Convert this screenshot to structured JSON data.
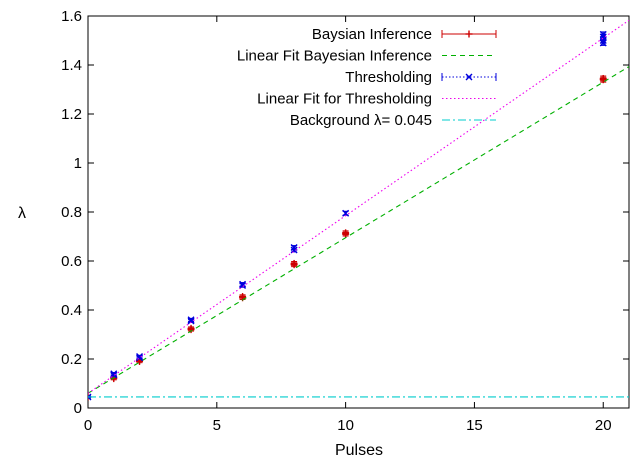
{
  "chart_data": {
    "type": "scatter",
    "xlabel": "Pulses",
    "ylabel": "λ",
    "xlim": [
      0,
      21
    ],
    "ylim": [
      0,
      1.6
    ],
    "xticks": [
      "0",
      "5",
      "10",
      "15",
      "20"
    ],
    "yticks": [
      "0",
      "0.2",
      "0.4",
      "0.6",
      "0.8",
      "1",
      "1.2",
      "1.4",
      "1.6"
    ],
    "grid": false,
    "legend_position": "top-right",
    "series": [
      {
        "name": "Baysian Inference",
        "kind": "errorbar-points",
        "marker": "plus",
        "color": "#cc0000",
        "x": [
          0,
          1,
          1,
          2,
          2,
          4,
          4,
          6,
          6,
          8,
          8,
          10,
          10,
          20,
          20
        ],
        "y": [
          0.045,
          0.12,
          0.125,
          0.19,
          0.195,
          0.32,
          0.325,
          0.45,
          0.455,
          0.585,
          0.59,
          0.71,
          0.715,
          1.34,
          1.345
        ],
        "yerr": [
          0.004,
          0.005,
          0.005,
          0.005,
          0.005,
          0.006,
          0.006,
          0.007,
          0.007,
          0.008,
          0.008,
          0.008,
          0.008,
          0.01,
          0.01
        ]
      },
      {
        "name": "Linear Fit Bayesian Inference",
        "kind": "line",
        "style": "dashed",
        "color": "#00b000",
        "slope": 0.0635,
        "intercept": 0.06
      },
      {
        "name": "Thresholding",
        "kind": "errorbar-points",
        "marker": "x",
        "color": "#0000dd",
        "x": [
          0,
          1,
          1,
          2,
          2,
          4,
          4,
          6,
          6,
          8,
          8,
          10,
          20,
          20,
          20,
          20
        ],
        "y": [
          0.045,
          0.135,
          0.14,
          0.205,
          0.21,
          0.355,
          0.36,
          0.5,
          0.505,
          0.645,
          0.655,
          0.795,
          1.49,
          1.5,
          1.515,
          1.525
        ],
        "yerr": [
          0.004,
          0.005,
          0.005,
          0.005,
          0.005,
          0.006,
          0.006,
          0.007,
          0.007,
          0.008,
          0.008,
          0.008,
          0.01,
          0.01,
          0.01,
          0.01
        ]
      },
      {
        "name": "Linear Fit for Thresholding",
        "kind": "line",
        "style": "dotted",
        "color": "#ee00ee",
        "slope": 0.0725,
        "intercept": 0.06
      },
      {
        "name": "Background λ= 0.045",
        "kind": "hline",
        "style": "dash-dot",
        "color": "#00cccc",
        "y": 0.045
      }
    ]
  }
}
